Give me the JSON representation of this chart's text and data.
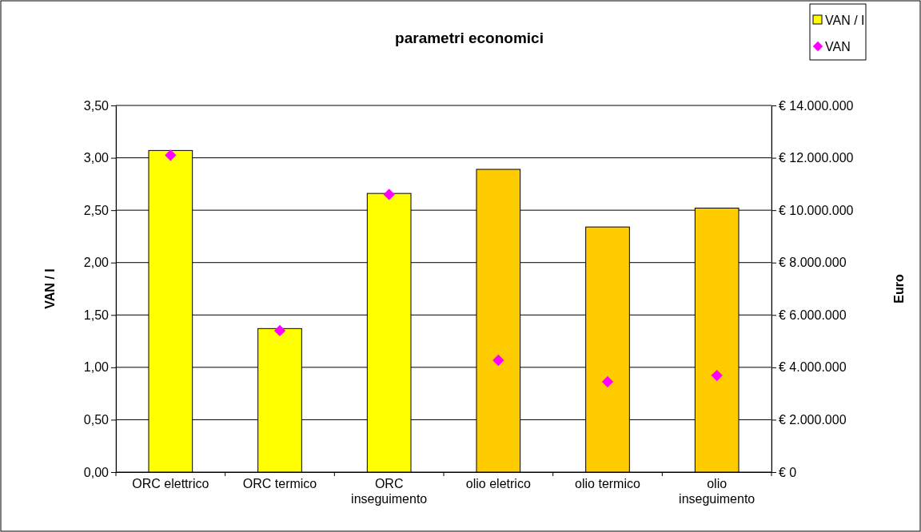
{
  "chart_data": {
    "type": "bar",
    "title": "parametri economici",
    "ylabel": "VAN / I",
    "y2label": "Euro",
    "categories": [
      "ORC elettrico",
      "ORC termico",
      "ORC inseguimento",
      "olio eletrico",
      "olio termico",
      "olio inseguimento"
    ],
    "series": [
      {
        "name": "VAN / I",
        "colors": [
          "#ffff00",
          "#ffff00",
          "#ffff00",
          "#ffcc00",
          "#ffcc00",
          "#ffcc00"
        ],
        "values": [
          3.07,
          1.37,
          2.66,
          2.89,
          2.34,
          2.52
        ]
      },
      {
        "name": "VAN",
        "type": "scatter",
        "axis": "y2",
        "color": "#ff00ff",
        "marker": "diamond",
        "values": [
          12100000,
          5400000,
          10600000,
          4270000,
          3450000,
          3690000
        ]
      }
    ],
    "ylim": [
      0,
      3.5
    ],
    "yticks": [
      {
        "value": 0,
        "label": "0,00"
      },
      {
        "value": 0.5,
        "label": "0,50"
      },
      {
        "value": 1,
        "label": "1,00"
      },
      {
        "value": 1.5,
        "label": "1,50"
      },
      {
        "value": 2,
        "label": "2,00"
      },
      {
        "value": 2.5,
        "label": "2,50"
      },
      {
        "value": 3,
        "label": "3,00"
      },
      {
        "value": 3.5,
        "label": "3,50"
      }
    ],
    "y2lim": [
      0,
      14000000
    ],
    "y2ticks": [
      {
        "value": 0,
        "label": "€ 0"
      },
      {
        "value": 2000000,
        "label": "€ 2.000.000"
      },
      {
        "value": 4000000,
        "label": "€ 4.000.000"
      },
      {
        "value": 6000000,
        "label": "€ 6.000.000"
      },
      {
        "value": 8000000,
        "label": "€ 8.000.000"
      },
      {
        "value": 10000000,
        "label": "€ 10.000.000"
      },
      {
        "value": 12000000,
        "label": "€ 12.000.000"
      },
      {
        "value": 14000000,
        "label": "€ 14.000.000"
      }
    ],
    "grid": "y",
    "legend": "top right"
  }
}
